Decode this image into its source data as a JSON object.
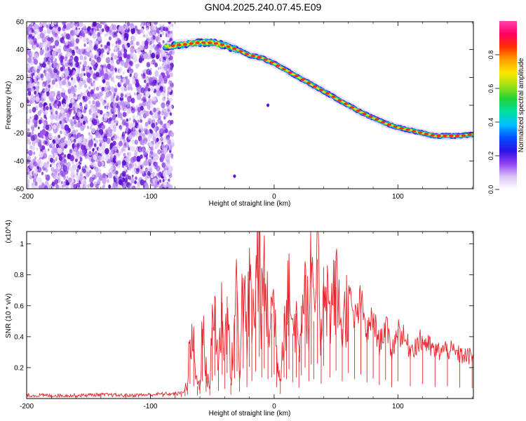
{
  "page_title": "GN04.2025.240.07.45.E09",
  "chart_data": [
    {
      "type": "heatmap",
      "title": "GN04.2025.240.07.45.E09",
      "xlabel": "Height of straight line (km)",
      "ylabel": "Frequency (Hz)",
      "xlim": [
        -200,
        161
      ],
      "ylim": [
        -60,
        60
      ],
      "x_ticks": [
        -200,
        -100,
        0,
        100
      ],
      "y_ticks": [
        -60,
        -40,
        -20,
        0,
        20,
        40,
        60
      ],
      "noise_region_x": [
        -200,
        -82
      ],
      "trace": {
        "x": [
          -88,
          -80,
          -70,
          -60,
          -50,
          -40,
          -30,
          -20,
          -10,
          0,
          10,
          20,
          30,
          40,
          50,
          60,
          70,
          80,
          90,
          100,
          110,
          120,
          130,
          140,
          150,
          160
        ],
        "freq": [
          42,
          43,
          44,
          45,
          45,
          43,
          40,
          36,
          34,
          30,
          25,
          20,
          15,
          10,
          5,
          0,
          -5,
          -9,
          -13,
          -16,
          -18,
          -20,
          -22,
          -22,
          -22,
          -21
        ]
      },
      "colorbar": {
        "label": "Normalized spectral amplitude",
        "range": [
          0,
          1
        ],
        "ticks": [
          "0.0",
          "0.2",
          "0.4",
          "0.6",
          "0.8"
        ],
        "colors": [
          "#ffffff",
          "#d9c4f5",
          "#8f3ff0",
          "#2a14e6",
          "#0050ff",
          "#00bfff",
          "#00e0a0",
          "#22d23a",
          "#9be014",
          "#ffe600",
          "#ffa000",
          "#ff3000",
          "#ff0060",
          "#ff3fb4"
        ]
      }
    },
    {
      "type": "line",
      "xlabel": "Height of straight line (km)",
      "ylabel": "SNR (10 * v/v)",
      "y_multiplier": "(x10^4)",
      "xlim": [
        -200,
        161
      ],
      "ylim": [
        0,
        1.08
      ],
      "x_ticks": [
        -200,
        -100,
        0,
        100
      ],
      "y_ticks": [
        0.2,
        0.4,
        0.6,
        0.8,
        1
      ],
      "color": "#e8232a",
      "series": [
        {
          "name": "SNR",
          "x": [
            -200,
            -180,
            -160,
            -140,
            -120,
            -100,
            -90,
            -80,
            -75,
            -72,
            -70,
            -68,
            -65,
            -62,
            -60,
            -58,
            -55,
            -52,
            -50,
            -48,
            -45,
            -42,
            -40,
            -38,
            -35,
            -32,
            -30,
            -28,
            -25,
            -22,
            -20,
            -18,
            -15,
            -12,
            -10,
            -8,
            -5,
            -2,
            0,
            2,
            5,
            8,
            10,
            12,
            15,
            18,
            20,
            22,
            25,
            28,
            30,
            32,
            35,
            38,
            40,
            45,
            50,
            55,
            60,
            65,
            70,
            75,
            80,
            85,
            90,
            95,
            100,
            110,
            120,
            130,
            140,
            150,
            160
          ],
          "y": [
            0.02,
            0.02,
            0.02,
            0.025,
            0.02,
            0.025,
            0.03,
            0.03,
            0.035,
            0.06,
            0.1,
            0.38,
            0.32,
            0.08,
            0.12,
            0.45,
            0.18,
            0.08,
            0.46,
            0.6,
            0.2,
            0.62,
            0.25,
            0.66,
            0.1,
            0.52,
            0.7,
            0.18,
            0.78,
            0.3,
            0.82,
            0.45,
            0.7,
            1.08,
            0.55,
            0.78,
            0.5,
            0.55,
            0.62,
            0.3,
            0.12,
            0.55,
            0.5,
            0.76,
            0.42,
            0.55,
            0.28,
            0.6,
            0.8,
            0.45,
            0.88,
            0.5,
            0.9,
            0.38,
            0.85,
            0.55,
            0.72,
            0.45,
            0.66,
            0.5,
            0.62,
            0.42,
            0.52,
            0.35,
            0.48,
            0.3,
            0.45,
            0.32,
            0.38,
            0.3,
            0.32,
            0.28,
            0.27
          ]
        }
      ]
    }
  ]
}
